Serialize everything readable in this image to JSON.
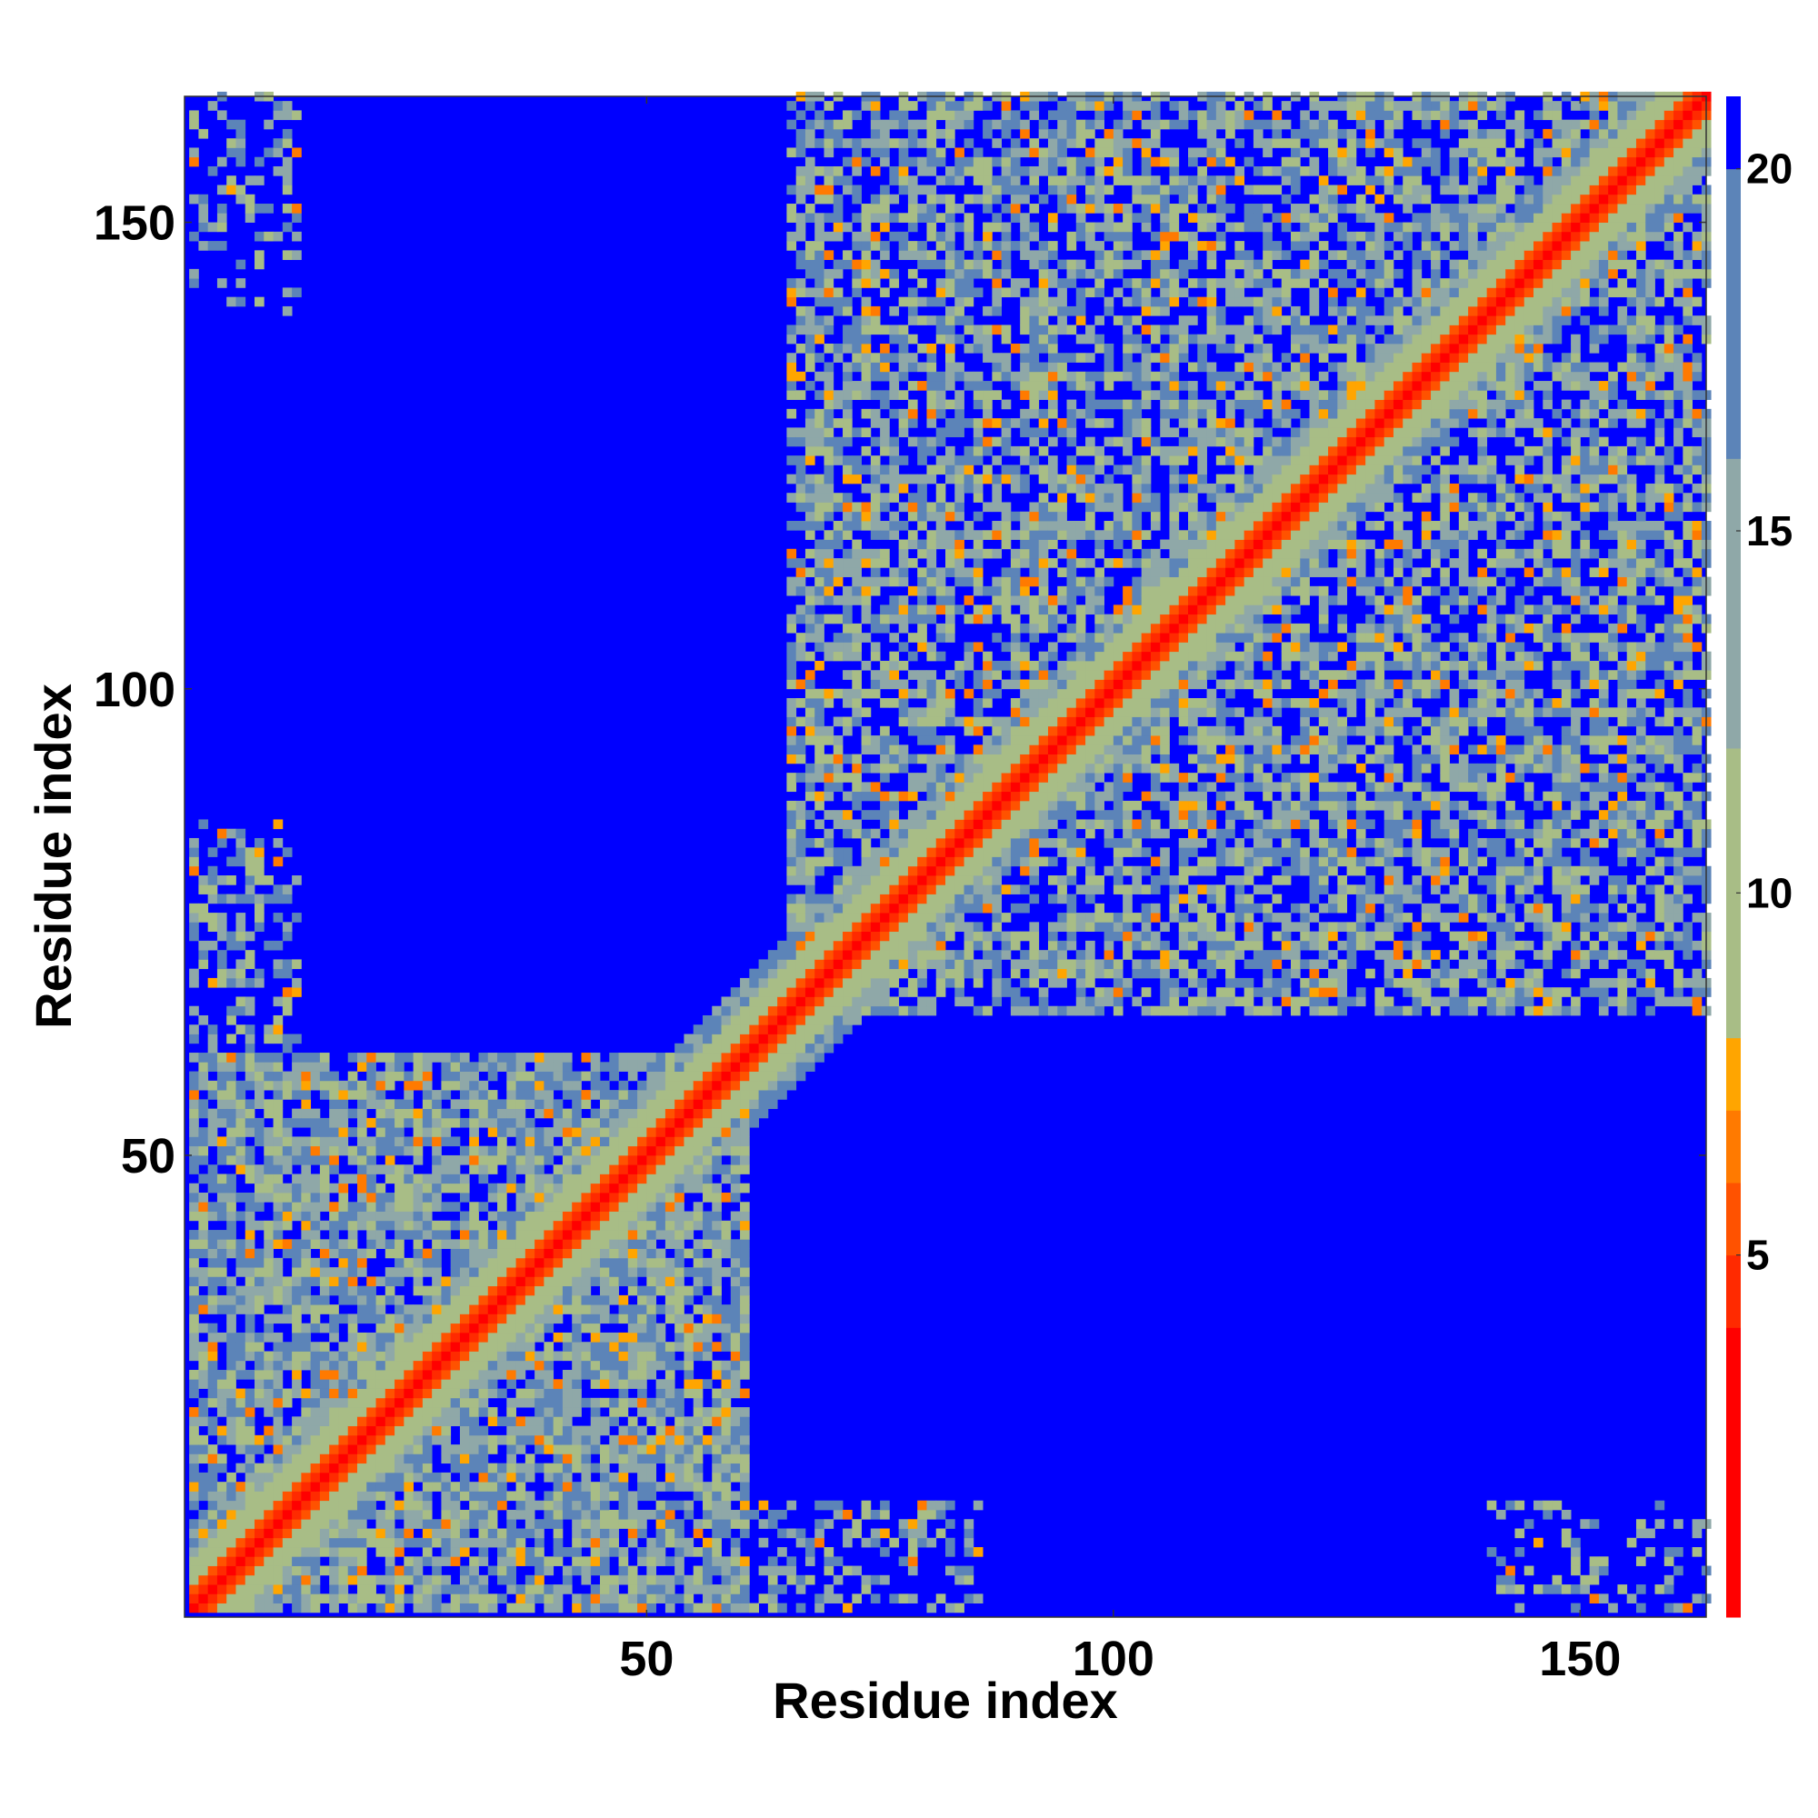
{
  "chart_data": {
    "type": "heatmap",
    "title": "",
    "xlabel": "Residue index",
    "ylabel": "Residue index",
    "xlim": [
      1,
      163
    ],
    "ylim": [
      1,
      163
    ],
    "n_residues": 163,
    "x_ticks": [
      50,
      100,
      150
    ],
    "y_ticks": [
      50,
      100,
      150
    ],
    "colorbar": {
      "ticks": [
        5,
        10,
        15,
        20
      ],
      "vmin": 0,
      "vmax": 21,
      "colors": [
        "#ff0000",
        "#ff2a00",
        "#ff5200",
        "#ff7a00",
        "#ffa500",
        "#a8bd86",
        "#8fa8a8",
        "#5c84b8",
        "#0000ff"
      ],
      "levels": [
        0,
        4,
        5,
        6,
        7,
        8,
        12,
        16,
        20,
        21
      ]
    },
    "structure_description": "Symmetric residue-residue distance map (Å). Red/orange along the diagonal; contact blocks roughly residues 1-65 and 65-163; off-diagonal contact patches near x 65-125 / y 110-163 and x 125-163 / y 60-110; >20 shown blue.",
    "blocks": [
      {
        "x": [
          1,
          60
        ],
        "y": [
          1,
          60
        ],
        "strength": 1.0
      },
      {
        "x": [
          65,
          163
        ],
        "y": [
          65,
          163
        ],
        "strength": 0.8
      },
      {
        "x": [
          70,
          125
        ],
        "y": [
          110,
          162
        ],
        "strength": 0.75
      },
      {
        "x": [
          125,
          163
        ],
        "y": [
          65,
          110
        ],
        "strength": 0.75
      },
      {
        "x": [
          1,
          12
        ],
        "y": [
          60,
          85
        ],
        "strength": 0.5
      },
      {
        "x": [
          1,
          12
        ],
        "y": [
          140,
          162
        ],
        "strength": 0.3
      },
      {
        "x": [
          140,
          163
        ],
        "y": [
          1,
          12
        ],
        "strength": 0.3
      },
      {
        "x": [
          60,
          80
        ],
        "y": [
          1,
          12
        ],
        "strength": 0.4
      }
    ]
  }
}
